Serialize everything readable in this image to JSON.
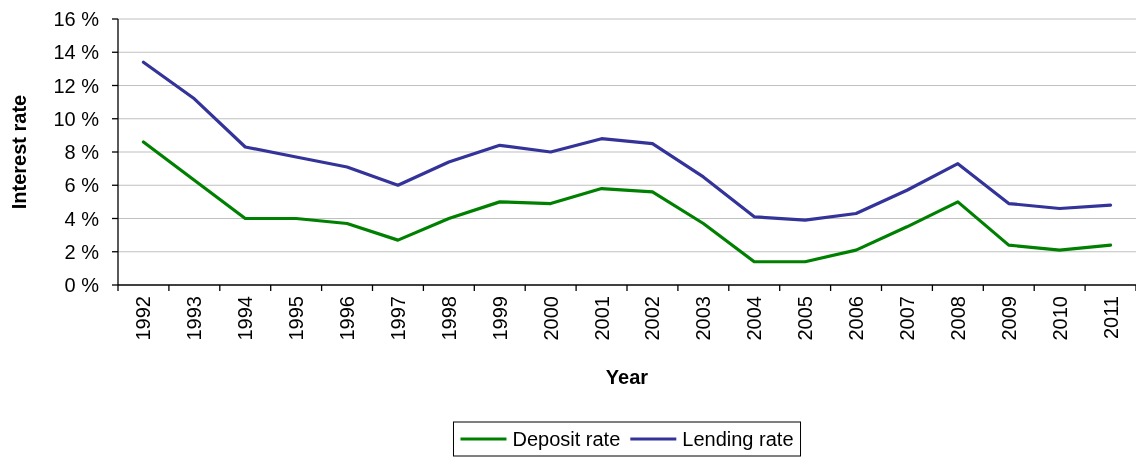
{
  "chart_data": {
    "type": "line",
    "xlabel": "Year",
    "ylabel": "Interest rate",
    "categories": [
      "1992",
      "1993",
      "1994",
      "1995",
      "1996",
      "1997",
      "1998",
      "1999",
      "2000",
      "2001",
      "2002",
      "2003",
      "2004",
      "2005",
      "2006",
      "2007",
      "2008",
      "2009",
      "2010",
      "2011"
    ],
    "series": [
      {
        "name": "Deposit rate",
        "color": "#008000",
        "values": [
          8.6,
          6.3,
          4.0,
          4.0,
          3.7,
          2.7,
          4.0,
          5.0,
          4.9,
          5.8,
          5.6,
          3.7,
          1.4,
          1.4,
          2.1,
          3.5,
          5.0,
          2.4,
          2.1,
          2.4
        ]
      },
      {
        "name": "Lending rate",
        "color": "#333399",
        "values": [
          13.4,
          11.2,
          8.3,
          7.7,
          7.1,
          6.0,
          7.4,
          8.4,
          8.0,
          8.8,
          8.5,
          6.5,
          4.1,
          3.9,
          4.3,
          5.7,
          7.3,
          4.9,
          4.6,
          4.8
        ]
      }
    ],
    "ylim": [
      0,
      16
    ],
    "yticks": [
      {
        "value": 0,
        "label": "0 %"
      },
      {
        "value": 2,
        "label": "2 %"
      },
      {
        "value": 4,
        "label": "4 %"
      },
      {
        "value": 6,
        "label": "6 %"
      },
      {
        "value": 8,
        "label": "8 %"
      },
      {
        "value": 10,
        "label": "10 %"
      },
      {
        "value": 12,
        "label": "12 %"
      },
      {
        "value": 14,
        "label": "14 %"
      },
      {
        "value": 16,
        "label": "16 %"
      }
    ],
    "grid": "y",
    "legend": "bottom"
  }
}
